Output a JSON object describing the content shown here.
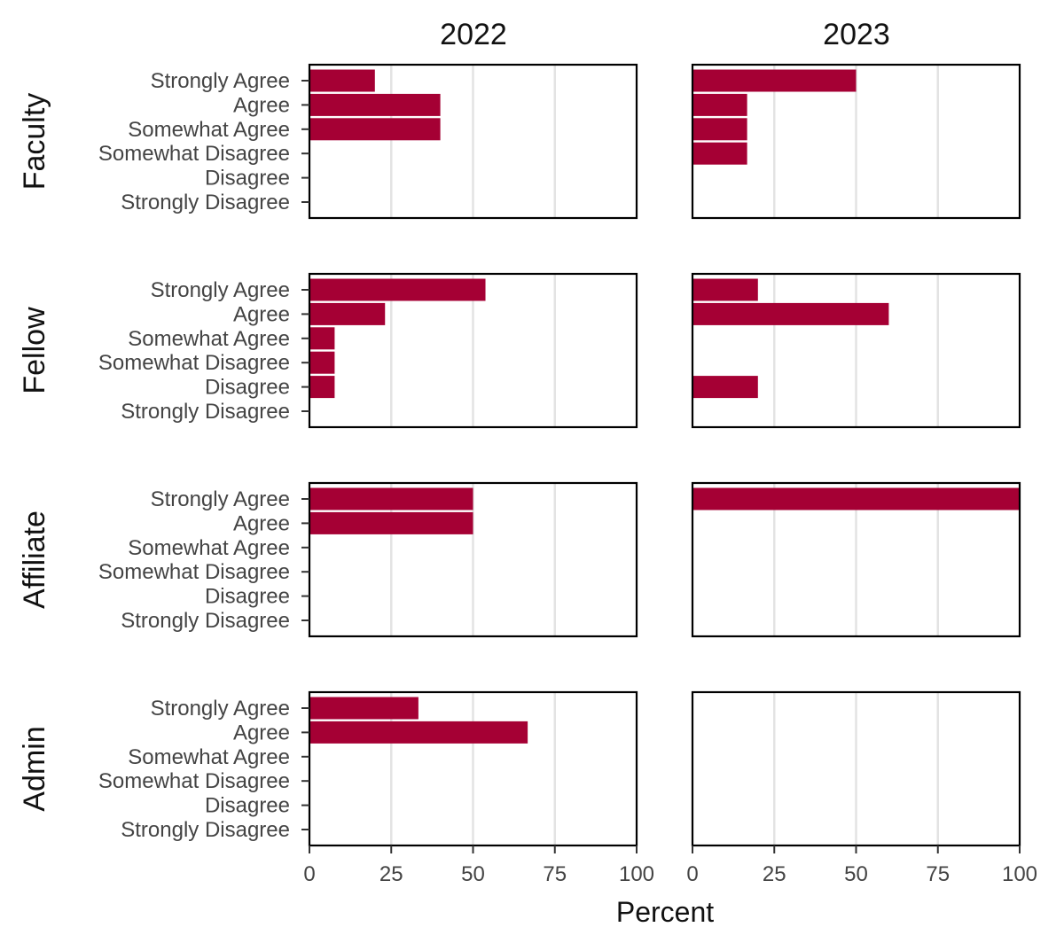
{
  "chart_data": {
    "type": "bar",
    "orientation": "horizontal",
    "facet_columns": [
      "2022",
      "2023"
    ],
    "facet_rows": [
      "Faculty",
      "Fellow",
      "Affiliate",
      "Admin"
    ],
    "categories": [
      "Strongly Agree",
      "Agree",
      "Somewhat Agree",
      "Somewhat Disagree",
      "Disagree",
      "Strongly Disagree"
    ],
    "xlabel": "Percent",
    "xlim": [
      0,
      100
    ],
    "xticks": [
      0,
      25,
      50,
      75,
      100
    ],
    "xtick_labels": [
      "0",
      "25",
      "50",
      "75",
      "100"
    ],
    "grid": "vertical major lines at 25, 50, 75",
    "bar_color": "#a50034",
    "panels": [
      {
        "row": "Faculty",
        "col": "2022",
        "values": [
          20,
          40,
          40,
          0,
          0,
          0
        ]
      },
      {
        "row": "Faculty",
        "col": "2023",
        "values": [
          50,
          16.7,
          16.7,
          16.7,
          0,
          0
        ]
      },
      {
        "row": "Fellow",
        "col": "2022",
        "values": [
          53.8,
          23.1,
          7.7,
          7.7,
          7.7,
          0
        ]
      },
      {
        "row": "Fellow",
        "col": "2023",
        "values": [
          20,
          60,
          0,
          0,
          20,
          0
        ]
      },
      {
        "row": "Affiliate",
        "col": "2022",
        "values": [
          50,
          50,
          0,
          0,
          0,
          0
        ]
      },
      {
        "row": "Affiliate",
        "col": "2023",
        "values": [
          100,
          0,
          0,
          0,
          0,
          0
        ]
      },
      {
        "row": "Admin",
        "col": "2022",
        "values": [
          33.3,
          66.7,
          0,
          0,
          0,
          0
        ]
      },
      {
        "row": "Admin",
        "col": "2023",
        "values": [
          0,
          0,
          0,
          0,
          0,
          0
        ]
      }
    ]
  }
}
